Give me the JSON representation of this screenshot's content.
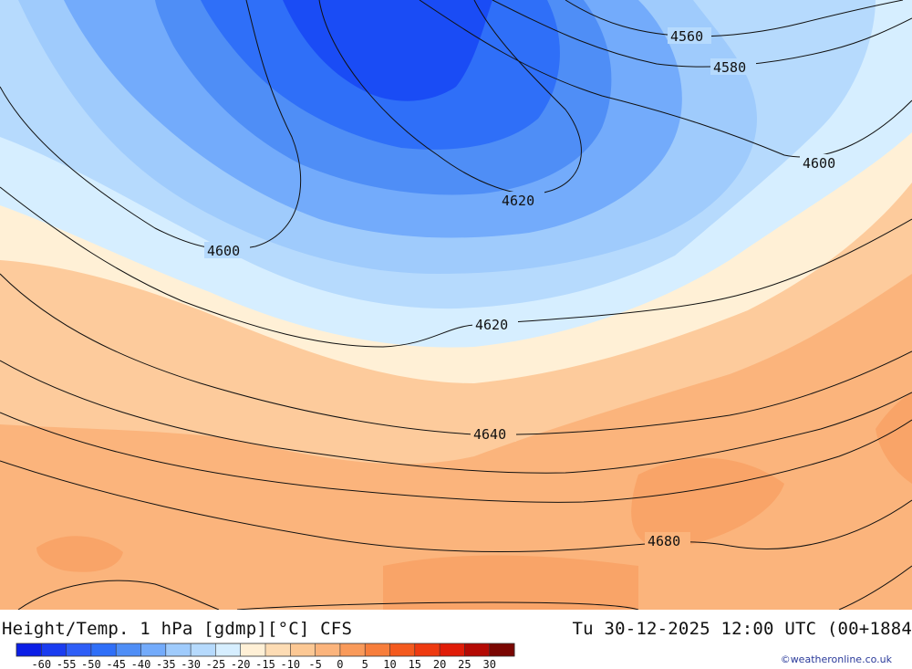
{
  "title": "Height/Temp. 1 hPa [gdmp][°C] CFS",
  "valid_time": "Tu 30-12-2025 12:00 UTC (00+1884",
  "credit": "©weatheronline.co.uk",
  "colors": {
    "c_m60": "#0b1ee6",
    "c_m55": "#1a3cf0",
    "c_m50": "#2e5ef7",
    "c_m45": "#2f6ff8",
    "c_m40": "#4f8ef6",
    "c_m35": "#73abfb",
    "c_m30": "#9fcbfc",
    "c_m25": "#b6dafd",
    "c_m20": "#d6eeff",
    "c_m15": "#fff0d6",
    "c_m10": "#fddcb4",
    "c_m5": "#fcc894",
    "c_0": "#fbb47c",
    "c_5": "#f99a5a",
    "c_10": "#f77e3c",
    "c_15": "#f45a1e",
    "c_20": "#ee3a10",
    "c_25": "#e01c08",
    "c_30": "#b40a04",
    "c_35": "#7a0602"
  },
  "legend": {
    "colors": [
      "#0b1ee6",
      "#1a3cf0",
      "#2e5ef7",
      "#2f6ff8",
      "#4f8ef6",
      "#73abfb",
      "#9fcbfc",
      "#b6dafd",
      "#d6eeff",
      "#fff0d6",
      "#fddcb4",
      "#fcc894",
      "#fbb47c",
      "#f99a5a",
      "#f77e3c",
      "#f45a1e",
      "#ee3a10",
      "#e01c08",
      "#b40a04",
      "#7a0602"
    ],
    "ticks": [
      "-60",
      "-55",
      "-50",
      "-45",
      "-40",
      "-35",
      "-30",
      "-25",
      "-20",
      "-15",
      "-10",
      "-5",
      "0",
      "5",
      "10",
      "15",
      "20",
      "25",
      "30"
    ]
  },
  "contours": {
    "l4560": "4560",
    "l4580": "4580",
    "l4600a": "4600",
    "l4600b": "4600",
    "l4620a": "4620",
    "l4620b": "4620",
    "l4640": "4640",
    "l4680": "4680"
  }
}
